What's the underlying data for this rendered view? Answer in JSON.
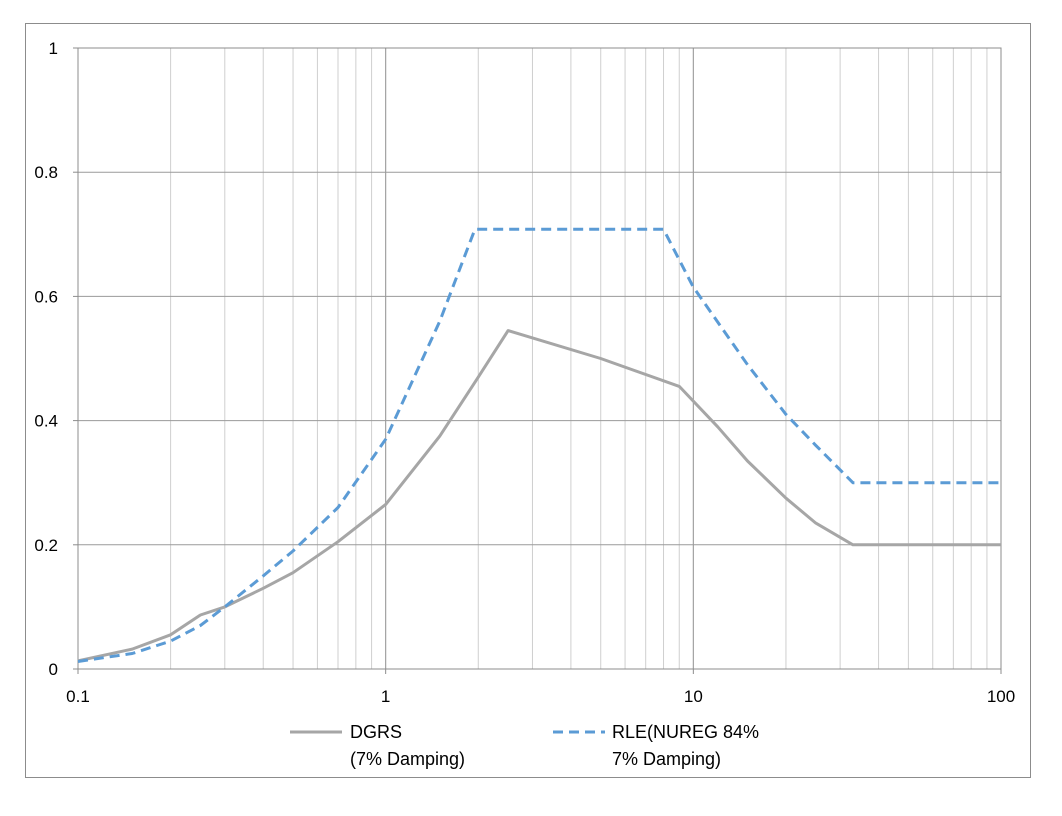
{
  "chart_data": {
    "type": "line",
    "title": "",
    "xlabel": "",
    "ylabel": "",
    "xscale": "log",
    "xlim": [
      0.1,
      100
    ],
    "ylim": [
      0,
      1
    ],
    "grid": true,
    "legend_position": "bottom",
    "x_ticks": [
      "0.1",
      "1",
      "10",
      "100"
    ],
    "y_ticks": [
      "0",
      "0.2",
      "0.4",
      "0.6",
      "0.8",
      "1"
    ],
    "series": [
      {
        "name": "DGRS (7% Damping)",
        "legend_lines": [
          "DGRS",
          "(7% Damping)"
        ],
        "color": "#a6a6a6",
        "style": "solid",
        "x": [
          0.1,
          0.15,
          0.2,
          0.25,
          0.3,
          0.4,
          0.5,
          0.7,
          1.0,
          1.5,
          2.0,
          2.5,
          5.0,
          9.0,
          12,
          15,
          20,
          25,
          33,
          50,
          100
        ],
        "y": [
          0.013,
          0.032,
          0.055,
          0.087,
          0.1,
          0.13,
          0.155,
          0.205,
          0.265,
          0.375,
          0.47,
          0.545,
          0.5,
          0.455,
          0.39,
          0.335,
          0.275,
          0.235,
          0.2,
          0.2,
          0.2
        ]
      },
      {
        "name": "RLE(NUREG 84% 7% Damping)",
        "legend_lines": [
          "RLE(NUREG 84%",
          "7% Damping)"
        ],
        "color": "#5b9bd5",
        "style": "dashed",
        "x": [
          0.1,
          0.15,
          0.2,
          0.25,
          0.3,
          0.4,
          0.5,
          0.7,
          1.0,
          1.5,
          1.95,
          8.0,
          10,
          15,
          20,
          25,
          33,
          50,
          100
        ],
        "y": [
          0.012,
          0.025,
          0.045,
          0.07,
          0.1,
          0.15,
          0.19,
          0.26,
          0.37,
          0.56,
          0.708,
          0.708,
          0.615,
          0.49,
          0.41,
          0.36,
          0.3,
          0.3,
          0.3
        ]
      }
    ]
  }
}
